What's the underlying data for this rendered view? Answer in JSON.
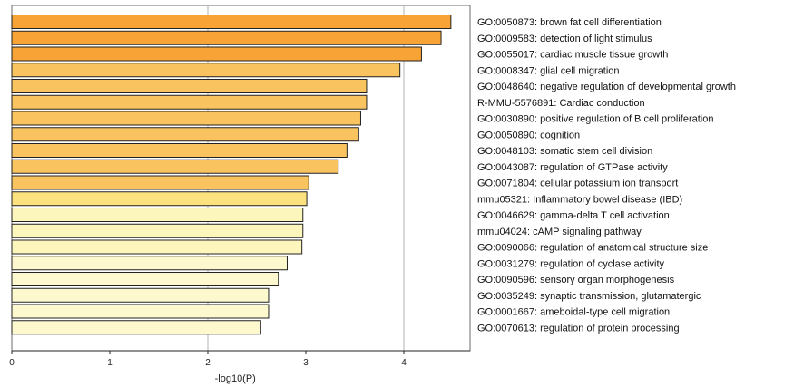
{
  "chart_data": {
    "type": "bar",
    "orientation": "horizontal",
    "categories": [
      "GO:0050873: brown fat cell differentiation",
      "GO:0009583: detection of light stimulus",
      "GO:0055017: cardiac muscle tissue growth",
      "GO:0008347: glial cell migration",
      "GO:0048640: negative regulation of developmental growth",
      "R-MMU-5576891: Cardiac conduction",
      "GO:0030890: positive regulation of B cell proliferation",
      "GO:0050890: cognition",
      "GO:0048103: somatic stem cell division",
      "GO:0043087: regulation of GTPase activity",
      "GO:0071804: cellular potassium ion transport",
      "mmu05321: Inflammatory bowel disease (IBD)",
      "GO:0046629: gamma-delta T cell activation",
      "mmu04024: cAMP signaling pathway",
      "GO:0090066: regulation of anatomical structure size",
      "GO:0031279: regulation of cyclase activity",
      "GO:0090596: sensory organ morphogenesis",
      "GO:0035249: synaptic transmission, glutamatergic",
      "GO:0001667: ameboidal-type cell migration",
      "GO:0070613: regulation of protein processing"
    ],
    "values": [
      4.48,
      4.38,
      4.18,
      3.96,
      3.62,
      3.62,
      3.56,
      3.54,
      3.42,
      3.33,
      3.03,
      3.01,
      2.97,
      2.97,
      2.96,
      2.81,
      2.72,
      2.62,
      2.62,
      2.54
    ],
    "colors": [
      "#f7a336",
      "#f7a336",
      "#f7a336",
      "#f9c460",
      "#f9c460",
      "#f9c460",
      "#f9c460",
      "#f9c460",
      "#f9c460",
      "#f9c460",
      "#f9c460",
      "#fbe27f",
      "#fcf5bc",
      "#fcf5bc",
      "#fcf5bc",
      "#fef8cf",
      "#fef8cf",
      "#fef8cf",
      "#fef8cf",
      "#fef8cf"
    ],
    "xlabel": "-log10(P)",
    "ylabel": "",
    "xlim": [
      0,
      4.6
    ],
    "xticks": [
      0,
      1,
      2,
      3,
      4
    ],
    "gridlines_at": [
      2,
      4
    ],
    "grid_color": "#b3b3b3",
    "bar_stroke": "#222222"
  }
}
